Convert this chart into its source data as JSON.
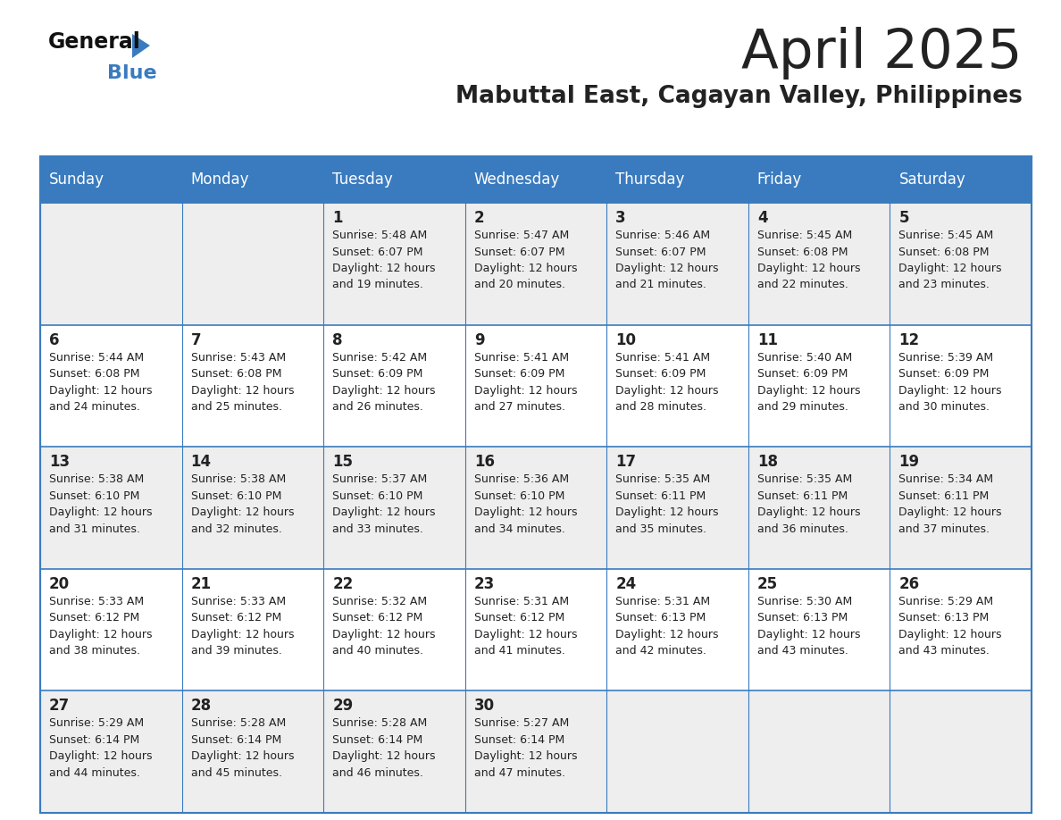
{
  "title": "April 2025",
  "subtitle": "Mabuttal East, Cagayan Valley, Philippines",
  "header_color": "#3a7bbf",
  "header_text_color": "#ffffff",
  "cell_bg_white": "#ffffff",
  "cell_bg_gray": "#eeeeee",
  "border_color": "#3a7bbf",
  "text_color": "#222222",
  "days_of_week": [
    "Sunday",
    "Monday",
    "Tuesday",
    "Wednesday",
    "Thursday",
    "Friday",
    "Saturday"
  ],
  "weeks": [
    [
      {
        "day": "",
        "sunrise": "",
        "sunset": "",
        "daylight1": "",
        "daylight2": ""
      },
      {
        "day": "",
        "sunrise": "",
        "sunset": "",
        "daylight1": "",
        "daylight2": ""
      },
      {
        "day": "1",
        "sunrise": "Sunrise: 5:48 AM",
        "sunset": "Sunset: 6:07 PM",
        "daylight1": "Daylight: 12 hours",
        "daylight2": "and 19 minutes."
      },
      {
        "day": "2",
        "sunrise": "Sunrise: 5:47 AM",
        "sunset": "Sunset: 6:07 PM",
        "daylight1": "Daylight: 12 hours",
        "daylight2": "and 20 minutes."
      },
      {
        "day": "3",
        "sunrise": "Sunrise: 5:46 AM",
        "sunset": "Sunset: 6:07 PM",
        "daylight1": "Daylight: 12 hours",
        "daylight2": "and 21 minutes."
      },
      {
        "day": "4",
        "sunrise": "Sunrise: 5:45 AM",
        "sunset": "Sunset: 6:08 PM",
        "daylight1": "Daylight: 12 hours",
        "daylight2": "and 22 minutes."
      },
      {
        "day": "5",
        "sunrise": "Sunrise: 5:45 AM",
        "sunset": "Sunset: 6:08 PM",
        "daylight1": "Daylight: 12 hours",
        "daylight2": "and 23 minutes."
      }
    ],
    [
      {
        "day": "6",
        "sunrise": "Sunrise: 5:44 AM",
        "sunset": "Sunset: 6:08 PM",
        "daylight1": "Daylight: 12 hours",
        "daylight2": "and 24 minutes."
      },
      {
        "day": "7",
        "sunrise": "Sunrise: 5:43 AM",
        "sunset": "Sunset: 6:08 PM",
        "daylight1": "Daylight: 12 hours",
        "daylight2": "and 25 minutes."
      },
      {
        "day": "8",
        "sunrise": "Sunrise: 5:42 AM",
        "sunset": "Sunset: 6:09 PM",
        "daylight1": "Daylight: 12 hours",
        "daylight2": "and 26 minutes."
      },
      {
        "day": "9",
        "sunrise": "Sunrise: 5:41 AM",
        "sunset": "Sunset: 6:09 PM",
        "daylight1": "Daylight: 12 hours",
        "daylight2": "and 27 minutes."
      },
      {
        "day": "10",
        "sunrise": "Sunrise: 5:41 AM",
        "sunset": "Sunset: 6:09 PM",
        "daylight1": "Daylight: 12 hours",
        "daylight2": "and 28 minutes."
      },
      {
        "day": "11",
        "sunrise": "Sunrise: 5:40 AM",
        "sunset": "Sunset: 6:09 PM",
        "daylight1": "Daylight: 12 hours",
        "daylight2": "and 29 minutes."
      },
      {
        "day": "12",
        "sunrise": "Sunrise: 5:39 AM",
        "sunset": "Sunset: 6:09 PM",
        "daylight1": "Daylight: 12 hours",
        "daylight2": "and 30 minutes."
      }
    ],
    [
      {
        "day": "13",
        "sunrise": "Sunrise: 5:38 AM",
        "sunset": "Sunset: 6:10 PM",
        "daylight1": "Daylight: 12 hours",
        "daylight2": "and 31 minutes."
      },
      {
        "day": "14",
        "sunrise": "Sunrise: 5:38 AM",
        "sunset": "Sunset: 6:10 PM",
        "daylight1": "Daylight: 12 hours",
        "daylight2": "and 32 minutes."
      },
      {
        "day": "15",
        "sunrise": "Sunrise: 5:37 AM",
        "sunset": "Sunset: 6:10 PM",
        "daylight1": "Daylight: 12 hours",
        "daylight2": "and 33 minutes."
      },
      {
        "day": "16",
        "sunrise": "Sunrise: 5:36 AM",
        "sunset": "Sunset: 6:10 PM",
        "daylight1": "Daylight: 12 hours",
        "daylight2": "and 34 minutes."
      },
      {
        "day": "17",
        "sunrise": "Sunrise: 5:35 AM",
        "sunset": "Sunset: 6:11 PM",
        "daylight1": "Daylight: 12 hours",
        "daylight2": "and 35 minutes."
      },
      {
        "day": "18",
        "sunrise": "Sunrise: 5:35 AM",
        "sunset": "Sunset: 6:11 PM",
        "daylight1": "Daylight: 12 hours",
        "daylight2": "and 36 minutes."
      },
      {
        "day": "19",
        "sunrise": "Sunrise: 5:34 AM",
        "sunset": "Sunset: 6:11 PM",
        "daylight1": "Daylight: 12 hours",
        "daylight2": "and 37 minutes."
      }
    ],
    [
      {
        "day": "20",
        "sunrise": "Sunrise: 5:33 AM",
        "sunset": "Sunset: 6:12 PM",
        "daylight1": "Daylight: 12 hours",
        "daylight2": "and 38 minutes."
      },
      {
        "day": "21",
        "sunrise": "Sunrise: 5:33 AM",
        "sunset": "Sunset: 6:12 PM",
        "daylight1": "Daylight: 12 hours",
        "daylight2": "and 39 minutes."
      },
      {
        "day": "22",
        "sunrise": "Sunrise: 5:32 AM",
        "sunset": "Sunset: 6:12 PM",
        "daylight1": "Daylight: 12 hours",
        "daylight2": "and 40 minutes."
      },
      {
        "day": "23",
        "sunrise": "Sunrise: 5:31 AM",
        "sunset": "Sunset: 6:12 PM",
        "daylight1": "Daylight: 12 hours",
        "daylight2": "and 41 minutes."
      },
      {
        "day": "24",
        "sunrise": "Sunrise: 5:31 AM",
        "sunset": "Sunset: 6:13 PM",
        "daylight1": "Daylight: 12 hours",
        "daylight2": "and 42 minutes."
      },
      {
        "day": "25",
        "sunrise": "Sunrise: 5:30 AM",
        "sunset": "Sunset: 6:13 PM",
        "daylight1": "Daylight: 12 hours",
        "daylight2": "and 43 minutes."
      },
      {
        "day": "26",
        "sunrise": "Sunrise: 5:29 AM",
        "sunset": "Sunset: 6:13 PM",
        "daylight1": "Daylight: 12 hours",
        "daylight2": "and 43 minutes."
      }
    ],
    [
      {
        "day": "27",
        "sunrise": "Sunrise: 5:29 AM",
        "sunset": "Sunset: 6:14 PM",
        "daylight1": "Daylight: 12 hours",
        "daylight2": "and 44 minutes."
      },
      {
        "day": "28",
        "sunrise": "Sunrise: 5:28 AM",
        "sunset": "Sunset: 6:14 PM",
        "daylight1": "Daylight: 12 hours",
        "daylight2": "and 45 minutes."
      },
      {
        "day": "29",
        "sunrise": "Sunrise: 5:28 AM",
        "sunset": "Sunset: 6:14 PM",
        "daylight1": "Daylight: 12 hours",
        "daylight2": "and 46 minutes."
      },
      {
        "day": "30",
        "sunrise": "Sunrise: 5:27 AM",
        "sunset": "Sunset: 6:14 PM",
        "daylight1": "Daylight: 12 hours",
        "daylight2": "and 47 minutes."
      },
      {
        "day": "",
        "sunrise": "",
        "sunset": "",
        "daylight1": "",
        "daylight2": ""
      },
      {
        "day": "",
        "sunrise": "",
        "sunset": "",
        "daylight1": "",
        "daylight2": ""
      },
      {
        "day": "",
        "sunrise": "",
        "sunset": "",
        "daylight1": "",
        "daylight2": ""
      }
    ]
  ],
  "logo_general_color": "#111111",
  "logo_blue_color": "#3a7bbf",
  "logo_triangle_color": "#3a7bbf"
}
